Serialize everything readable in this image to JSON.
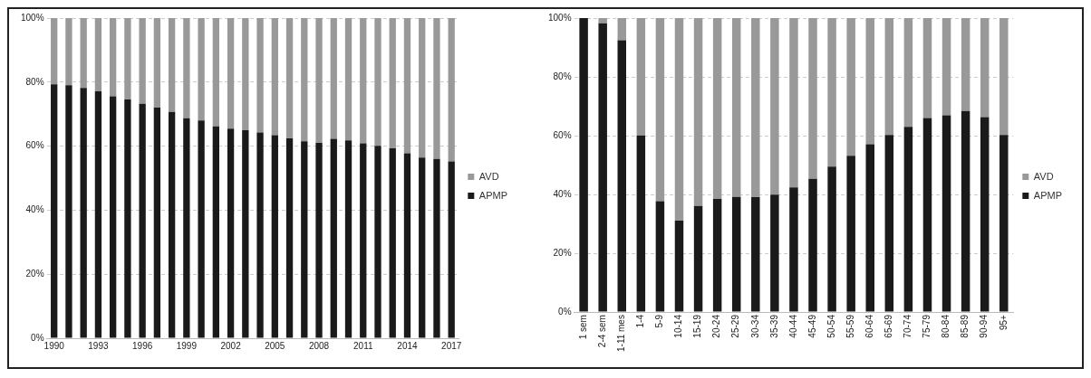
{
  "chart_data": [
    {
      "type": "bar",
      "stacked": true,
      "categories": [
        "1990",
        null,
        null,
        "1993",
        null,
        null,
        "1996",
        null,
        null,
        "1999",
        null,
        null,
        "2002",
        null,
        null,
        "2005",
        null,
        null,
        "2008",
        null,
        null,
        "2011",
        null,
        null,
        "2014",
        null,
        null,
        "2017"
      ],
      "series": [
        {
          "name": "APMP",
          "color": "#1a1a1a",
          "values": [
            79.3,
            79,
            78.2,
            77.1,
            75.6,
            74.6,
            73.2,
            72,
            70.7,
            68.7,
            68,
            66.2,
            65.5,
            65,
            64.3,
            63.4,
            62.4,
            61.5,
            61,
            62.3,
            61.8,
            60.9,
            60.1,
            59.3,
            57.8,
            56.4,
            56,
            55.2
          ]
        },
        {
          "name": "AVD",
          "color": "#999999",
          "values": [
            20.7,
            21,
            21.8,
            22.9,
            24.4,
            25.4,
            26.8,
            28,
            29.3,
            31.3,
            32,
            33.8,
            34.5,
            35,
            35.7,
            36.6,
            37.6,
            38.5,
            39,
            37.7,
            38.2,
            39.1,
            39.9,
            40.7,
            42.2,
            43.6,
            44,
            44.8
          ]
        }
      ],
      "ylim": [
        0,
        100
      ],
      "yticks": [
        {
          "value": 0,
          "label": "0%"
        },
        {
          "value": 20,
          "label": "20%"
        },
        {
          "value": 40,
          "label": "40%"
        },
        {
          "value": 60,
          "label": "60%"
        },
        {
          "value": 80,
          "label": "80%"
        },
        {
          "value": 100,
          "label": "100%"
        }
      ],
      "grid": "y",
      "legend": "right"
    },
    {
      "type": "bar",
      "stacked": true,
      "categories": [
        "1 sem",
        "2-4 sem",
        "1-11 mes",
        "1-4",
        "5-9",
        "10-14",
        "15-19",
        "20-24",
        "25-29",
        "30-34",
        "35-39",
        "40-44",
        "45-49",
        "50-54",
        "55-59",
        "60-64",
        "65-69",
        "70-74",
        "75-79",
        "80-84",
        "85-89",
        "90-94",
        "95+"
      ],
      "series": [
        {
          "name": "APMP",
          "color": "#1a1a1a",
          "values": [
            100,
            98.2,
            92.5,
            60.1,
            37.7,
            31.1,
            36.1,
            38.5,
            39.2,
            39.1,
            39.9,
            42.4,
            45.3,
            49.5,
            53.2,
            57.1,
            60.2,
            63,
            66,
            66.9,
            68.4,
            66.3,
            60.2
          ]
        },
        {
          "name": "AVD",
          "color": "#999999",
          "values": [
            0,
            1.8,
            7.5,
            39.9,
            62.3,
            68.9,
            63.9,
            61.5,
            60.8,
            60.9,
            60.1,
            57.6,
            54.7,
            50.5,
            46.8,
            42.9,
            39.8,
            37,
            34,
            33.1,
            31.6,
            33.7,
            39.8
          ]
        }
      ],
      "ylim": [
        0,
        100
      ],
      "yticks": [
        {
          "value": 0,
          "label": "0%"
        },
        {
          "value": 20,
          "label": "20%"
        },
        {
          "value": 40,
          "label": "40%"
        },
        {
          "value": 60,
          "label": "60%"
        },
        {
          "value": 80,
          "label": "80%"
        },
        {
          "value": 100,
          "label": "100%"
        }
      ],
      "grid": "y",
      "legend": "right"
    }
  ]
}
